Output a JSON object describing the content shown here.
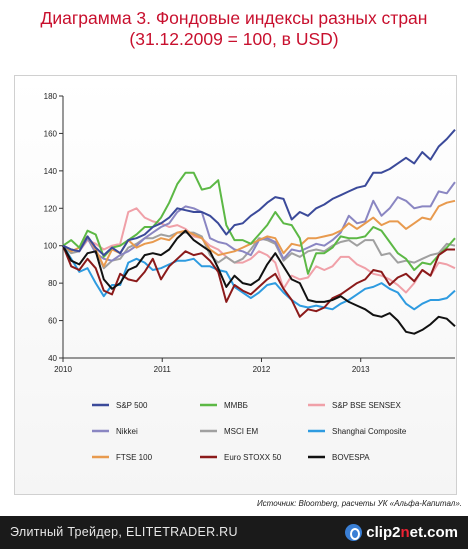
{
  "title": {
    "line1": "Диаграмма 3. Фондовые индексы разных стран",
    "line2": "(31.12.2009 = 100, в USD)"
  },
  "source": "Источник: Bloomberg, расчеты УК «Альфа-Капитал».",
  "footer": {
    "text": "Элитный Трейдер, ELITETRADER.RU",
    "logo_prefix": "clip2",
    "logo_n": "n",
    "logo_suffix": "et.com",
    "logo_icon": "clip2net-logo-icon"
  },
  "colors": {
    "title": "#c8102e",
    "footer_bg": "#1a1a1a"
  },
  "chart_data": {
    "type": "line",
    "title": "",
    "xlabel": "",
    "ylabel": "",
    "xlim": [
      2010.0,
      2013.95
    ],
    "ylim": [
      40,
      180
    ],
    "yticks": [
      40,
      60,
      80,
      100,
      120,
      140,
      160,
      180
    ],
    "xticks": [
      {
        "value": 2010,
        "label": "2010"
      },
      {
        "value": 2011,
        "label": "2011"
      },
      {
        "value": 2012,
        "label": "2012"
      },
      {
        "value": 2013,
        "label": "2013"
      }
    ],
    "grid": false,
    "legend_position": "bottom",
    "series": [
      {
        "name": "S&P 500",
        "color": "#3b4a9a",
        "y": [
          100,
          98,
          97,
          105,
          99,
          95,
          99,
          96,
          103,
          104,
          106,
          110,
          112,
          115,
          120,
          119,
          118,
          118,
          116,
          112,
          106,
          111,
          112,
          116,
          119,
          123,
          126,
          125,
          114,
          118,
          116,
          120,
          122,
          125,
          127,
          129,
          131,
          132,
          139,
          139,
          141,
          144,
          147,
          144,
          150,
          146,
          153,
          157,
          162
        ]
      },
      {
        "name": "Nikkei",
        "color": "#8a86c2",
        "y": [
          100,
          98,
          97,
          104,
          96,
          93,
          92,
          95,
          97,
          100,
          104,
          107,
          110,
          112,
          118,
          121,
          120,
          118,
          104,
          102,
          101,
          98,
          97,
          95,
          103,
          104,
          102,
          93,
          98,
          97,
          99,
          101,
          100,
          103,
          107,
          116,
          112,
          113,
          124,
          116,
          120,
          126,
          124,
          120,
          121,
          121,
          129,
          128,
          134
        ]
      },
      {
        "name": "FTSE 100",
        "color": "#e89a4e",
        "y": [
          100,
          97,
          99,
          105,
          98,
          89,
          98,
          96,
          103,
          99,
          101,
          102,
          104,
          103,
          107,
          108,
          106,
          104,
          98,
          95,
          96,
          97,
          99,
          101,
          103,
          105,
          104,
          96,
          101,
          100,
          104,
          104,
          105,
          106,
          108,
          112,
          109,
          112,
          115,
          111,
          113,
          113,
          109,
          112,
          115,
          114,
          121,
          123,
          124
        ]
      },
      {
        "name": "ММВБ",
        "color": "#5cb845",
        "y": [
          100,
          103,
          99,
          108,
          106,
          94,
          99,
          100,
          103,
          106,
          110,
          110,
          115,
          123,
          133,
          139,
          139,
          130,
          131,
          135,
          111,
          103,
          103,
          101,
          106,
          111,
          118,
          112,
          111,
          104,
          85,
          96,
          96,
          99,
          105,
          104,
          104,
          105,
          110,
          108,
          102,
          96,
          93,
          87,
          91,
          90,
          95,
          99,
          104
        ]
      },
      {
        "name": "MSCI EM",
        "color": "#a0a0a0",
        "y": [
          100,
          96,
          97,
          104,
          98,
          88,
          92,
          93,
          99,
          101,
          104,
          104,
          106,
          105,
          107,
          107,
          107,
          105,
          95,
          91,
          94,
          91,
          93,
          98,
          104,
          103,
          101,
          92,
          96,
          94,
          97,
          98,
          97,
          100,
          102,
          103,
          100,
          103,
          103,
          95,
          96,
          91,
          92,
          91,
          93,
          95,
          96,
          101,
          100
        ]
      },
      {
        "name": "S&P BSE SENSEX",
        "color": "#f0a0a8",
        "y": [
          100,
          98,
          97,
          103,
          101,
          98,
          100,
          101,
          118,
          120,
          115,
          113,
          112,
          110,
          111,
          109,
          105,
          104,
          100,
          98,
          94,
          91,
          91,
          93,
          97,
          95,
          91,
          77,
          84,
          82,
          83,
          89,
          87,
          89,
          94,
          94,
          90,
          88,
          85,
          84,
          82,
          79,
          75,
          80,
          87,
          84,
          91,
          90,
          88
        ]
      },
      {
        "name": "Euro STOXX 50",
        "color": "#8b1a1a",
        "y": [
          100,
          89,
          87,
          93,
          88,
          76,
          74,
          85,
          82,
          81,
          86,
          93,
          82,
          89,
          93,
          97,
          95,
          96,
          92,
          86,
          70,
          79,
          76,
          74,
          78,
          82,
          85,
          77,
          71,
          62,
          66,
          65,
          67,
          72,
          74,
          77,
          80,
          82,
          87,
          86,
          79,
          83,
          85,
          81,
          87,
          84,
          95,
          98,
          98
        ]
      },
      {
        "name": "Shanghai Composite",
        "color": "#2e9be0",
        "y": [
          100,
          93,
          86,
          88,
          80,
          73,
          79,
          79,
          91,
          93,
          91,
          87,
          88,
          90,
          92,
          92,
          93,
          89,
          89,
          87,
          86,
          78,
          75,
          72,
          75,
          79,
          80,
          75,
          71,
          68,
          67,
          68,
          67,
          66,
          69,
          71,
          74,
          77,
          78,
          80,
          77,
          75,
          69,
          66,
          69,
          71,
          71,
          72,
          76
        ]
      },
      {
        "name": "BOVESPA",
        "color": "#111111",
        "y": [
          100,
          92,
          90,
          96,
          97,
          82,
          77,
          80,
          87,
          89,
          95,
          96,
          95,
          98,
          104,
          108,
          103,
          100,
          97,
          88,
          78,
          84,
          80,
          79,
          82,
          90,
          96,
          89,
          82,
          80,
          71,
          70,
          70,
          71,
          73,
          70,
          68,
          66,
          63,
          62,
          64,
          60,
          54,
          53,
          55,
          58,
          62,
          61,
          57
        ]
      }
    ],
    "legend": [
      [
        {
          "name": "S&P 500",
          "color": "#3b4a9a"
        },
        {
          "name": "ММВБ",
          "color": "#5cb845"
        },
        {
          "name": "S&P BSE SENSEX",
          "color": "#f0a0a8"
        }
      ],
      [
        {
          "name": "Nikkei",
          "color": "#8a86c2"
        },
        {
          "name": "MSCI EM",
          "color": "#a0a0a0"
        },
        {
          "name": "Shanghai Composite",
          "color": "#2e9be0"
        }
      ],
      [
        {
          "name": "FTSE 100",
          "color": "#e89a4e"
        },
        {
          "name": "Euro STOXX 50",
          "color": "#8b1a1a"
        },
        {
          "name": "BOVESPA",
          "color": "#111111"
        }
      ]
    ]
  }
}
